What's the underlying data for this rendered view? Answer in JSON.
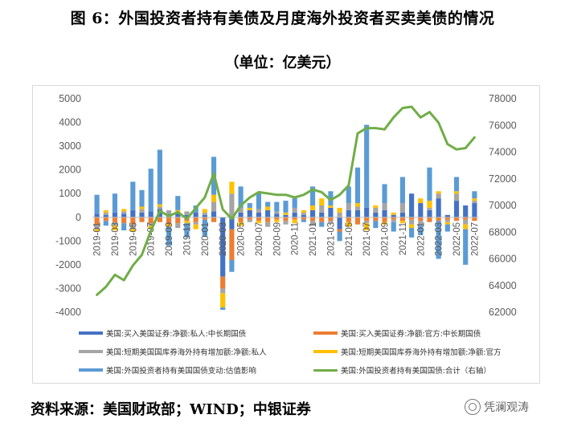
{
  "title": "图 6：外国投资者持有美债及月度海外投资者买卖美债的情况",
  "subtitle": "（单位：亿美元）",
  "source": "资料来源：美国财政部；WIND；中银证券",
  "watermark": "凭澜观涛",
  "watermark_icon": "wechat-logo-icon",
  "colors": {
    "private_long": "#4472C4",
    "official_long": "#ED7D31",
    "private_short": "#A5A5A5",
    "official_short": "#FFC000",
    "valuation": "#5B9BD5",
    "total": "#70AD47"
  },
  "chart_data": {
    "type": "bar",
    "combo_line_series": "total",
    "y_left": {
      "lim": [
        -4000,
        5000
      ],
      "ticks": [
        -4000,
        -3000,
        -2000,
        -1000,
        0,
        1000,
        2000,
        3000,
        4000,
        5000
      ]
    },
    "y_right": {
      "lim": [
        62000,
        78000
      ],
      "ticks": [
        62000,
        64000,
        66000,
        68000,
        70000,
        72000,
        74000,
        76000,
        78000
      ]
    },
    "x_tick_labels": [
      "2019-01",
      "2019-03",
      "2019-05",
      "2019-07",
      "2019-09",
      "2019-11",
      "2020-01",
      "2020-03",
      "2020-05",
      "2020-07",
      "2020-09",
      "2020-11",
      "2021-01",
      "2021-03",
      "2021-05",
      "2021-07",
      "2021-09",
      "2021-11",
      "2022-01",
      "2022-03",
      "2022-05",
      "2022-07"
    ],
    "categories": [
      "2019-01",
      "2019-02",
      "2019-03",
      "2019-04",
      "2019-05",
      "2019-06",
      "2019-07",
      "2019-08",
      "2019-09",
      "2019-10",
      "2019-11",
      "2019-12",
      "2020-01",
      "2020-02",
      "2020-03",
      "2020-04",
      "2020-05",
      "2020-06",
      "2020-07",
      "2020-08",
      "2020-09",
      "2020-10",
      "2020-11",
      "2020-12",
      "2021-01",
      "2021-02",
      "2021-03",
      "2021-04",
      "2021-05",
      "2021-06",
      "2021-07",
      "2021-08",
      "2021-09",
      "2021-10",
      "2021-11",
      "2021-12",
      "2022-01",
      "2022-02",
      "2022-03",
      "2022-04",
      "2022-05",
      "2022-06",
      "2022-07"
    ],
    "series": [
      {
        "key": "private_long",
        "name": "美国:买入美国证券:净额:私人:中长期国债",
        "values": [
          150,
          100,
          200,
          150,
          300,
          200,
          250,
          350,
          150,
          200,
          100,
          200,
          100,
          250,
          -2500,
          -500,
          200,
          300,
          200,
          300,
          150,
          100,
          200,
          100,
          300,
          200,
          400,
          -500,
          300,
          300,
          400,
          200,
          300,
          100,
          200,
          1000,
          600,
          300,
          800,
          100,
          700,
          500,
          600
        ]
      },
      {
        "key": "official_long",
        "name": "美国:买入美国证券:净额:官方:中长期国债",
        "values": [
          -300,
          -150,
          -200,
          -250,
          -300,
          -200,
          -250,
          -200,
          -300,
          -250,
          -150,
          -200,
          -100,
          -200,
          -500,
          -1300,
          -200,
          -100,
          -150,
          -200,
          -100,
          -150,
          -100,
          -100,
          -150,
          -200,
          -150,
          -100,
          -200,
          -300,
          -150,
          -150,
          -200,
          -100,
          -150,
          -100,
          -150,
          -200,
          -150,
          -100,
          -150,
          -100,
          -150
        ]
      },
      {
        "key": "private_short",
        "name": "美国:短期美国国库券海外持有增加额:净额:私人",
        "values": [
          -200,
          100,
          -150,
          100,
          -200,
          150,
          -100,
          100,
          150,
          -200,
          150,
          -100,
          100,
          400,
          -200,
          1000,
          200,
          -100,
          150,
          -200,
          100,
          -150,
          200,
          100,
          -200,
          300,
          -100,
          200,
          300,
          150,
          -100,
          200,
          300,
          -100,
          400,
          -200,
          -200,
          100,
          200,
          -100,
          300,
          -200,
          100
        ]
      },
      {
        "key": "official_short",
        "name": "美国:短期美国国库券海外持有增加额:净额:官方",
        "values": [
          -100,
          100,
          -200,
          100,
          -100,
          100,
          -150,
          100,
          -100,
          100,
          -100,
          -200,
          150,
          300,
          -600,
          500,
          -150,
          100,
          -100,
          150,
          -100,
          100,
          -150,
          100,
          200,
          300,
          100,
          200,
          -200,
          150,
          -300,
          100,
          -100,
          100,
          -100,
          -150,
          200,
          300,
          100,
          -100,
          100,
          -200,
          100
        ]
      },
      {
        "key": "valuation",
        "name": "美国:外国投资者持有美国国债变动:估值影响",
        "values": [
          800,
          -200,
          800,
          -300,
          1200,
          700,
          1800,
          2300,
          -800,
          600,
          -600,
          300,
          -700,
          1600,
          -100,
          -500,
          900,
          200,
          700,
          200,
          400,
          500,
          400,
          -100,
          800,
          -200,
          600,
          -400,
          700,
          1500,
          3500,
          -300,
          800,
          -400,
          1100,
          -400,
          -400,
          1400,
          -1600,
          -300,
          600,
          -1500,
          300
        ]
      },
      {
        "key": "total",
        "name": "美国:外国投资者持有美国国债:合计（右轴）",
        "axis": "right",
        "values": [
          63300,
          63900,
          64800,
          64400,
          65500,
          66300,
          68100,
          69600,
          69200,
          69500,
          69000,
          69800,
          70600,
          72400,
          69700,
          69000,
          70000,
          70600,
          71000,
          70900,
          70800,
          70800,
          70600,
          70800,
          71200,
          71000,
          70400,
          70800,
          71500,
          75400,
          75800,
          75800,
          75700,
          76600,
          77300,
          77400,
          76600,
          77000,
          76200,
          74600,
          74200,
          74300,
          75100
        ]
      }
    ],
    "x_tick_rotation": -90,
    "legend": "bottom"
  }
}
